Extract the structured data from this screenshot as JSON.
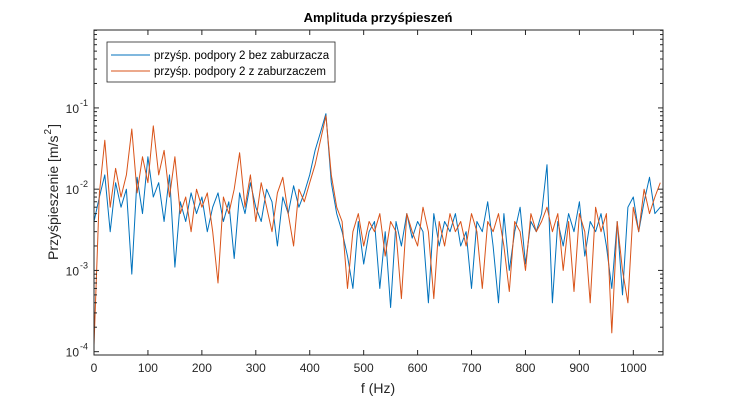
{
  "chart_data": {
    "type": "line",
    "title": "Amplituda przyśpieszeń",
    "xlabel": "f (Hz)",
    "ylabel": "Przyśpieszenie [m/s",
    "ylabel_sup": "2",
    "ylabel_end": "]",
    "xlim": [
      0,
      1055
    ],
    "ylim": [
      9.1e-05,
      0.91
    ],
    "yscale": "log",
    "x_ticks": [
      0,
      100,
      200,
      300,
      400,
      500,
      600,
      700,
      800,
      900,
      1000
    ],
    "y_ticks": [
      {
        "value": 0.0001,
        "base": "10",
        "exp": "-4"
      },
      {
        "value": 0.001,
        "base": "10",
        "exp": "-3"
      },
      {
        "value": 0.01,
        "base": "10",
        "exp": "-2"
      },
      {
        "value": 0.1,
        "base": "10",
        "exp": "-1"
      }
    ],
    "legend_position": "top-left",
    "x_step_hz": 10,
    "series": [
      {
        "name": "przyśp. podpory 2 bez zaburzacza",
        "color": "#0072BD",
        "values": [
          0.004,
          0.008,
          0.015,
          0.003,
          0.012,
          0.006,
          0.01,
          0.0009,
          0.014,
          0.005,
          0.025,
          0.008,
          0.012,
          0.004,
          0.015,
          0.0011,
          0.007,
          0.004,
          0.009,
          0.005,
          0.008,
          0.003,
          0.006,
          0.009,
          0.004,
          0.007,
          0.0014,
          0.009,
          0.005,
          0.012,
          0.006,
          0.004,
          0.01,
          0.007,
          0.002,
          0.008,
          0.005,
          0.011,
          0.006,
          0.009,
          0.015,
          0.03,
          0.05,
          0.085,
          0.012,
          0.005,
          0.003,
          0.0015,
          0.0006,
          0.004,
          0.0012,
          0.003,
          0.004,
          0.0006,
          0.003,
          0.00035,
          0.004,
          0.002,
          0.005,
          0.0025,
          0.004,
          0.003,
          0.0004,
          0.005,
          0.002,
          0.004,
          0.003,
          0.005,
          0.002,
          0.003,
          0.0006,
          0.004,
          0.003,
          0.007,
          0.002,
          0.0004,
          0.005,
          0.001,
          0.003,
          0.006,
          0.0012,
          0.004,
          0.003,
          0.005,
          0.02,
          0.0004,
          0.004,
          0.002,
          0.005,
          0.003,
          0.007,
          0.0015,
          0.004,
          0.003,
          0.005,
          0.002,
          0.0006,
          0.004,
          0.0005,
          0.006,
          0.008,
          0.003,
          0.007,
          0.014,
          0.005,
          0.006
        ]
      },
      {
        "name": "przyśp. podpory 2 z zaburzaczem",
        "color": "#D95319",
        "values": [
          0.00012,
          0.009,
          0.04,
          0.006,
          0.018,
          0.008,
          0.015,
          0.055,
          0.009,
          0.025,
          0.012,
          0.06,
          0.015,
          0.03,
          0.008,
          0.025,
          0.005,
          0.008,
          0.003,
          0.01,
          0.006,
          0.009,
          0.003,
          0.0007,
          0.008,
          0.005,
          0.01,
          0.028,
          0.006,
          0.015,
          0.004,
          0.012,
          0.006,
          0.003,
          0.009,
          0.014,
          0.005,
          0.002,
          0.01,
          0.007,
          0.012,
          0.02,
          0.04,
          0.08,
          0.015,
          0.006,
          0.004,
          0.0006,
          0.003,
          0.005,
          0.002,
          0.004,
          0.003,
          0.005,
          0.0015,
          0.004,
          0.003,
          0.00045,
          0.005,
          0.003,
          0.002,
          0.006,
          0.003,
          0.00045,
          0.004,
          0.002,
          0.005,
          0.003,
          0.004,
          0.002,
          0.005,
          0.003,
          0.0006,
          0.004,
          0.003,
          0.005,
          0.002,
          0.00055,
          0.004,
          0.003,
          0.001,
          0.005,
          0.003,
          0.004,
          0.006,
          0.003,
          0.005,
          0.001,
          0.004,
          0.00055,
          0.005,
          0.003,
          0.0004,
          0.006,
          0.003,
          0.005,
          0.00017,
          0.004,
          0.001,
          0.0004,
          0.006,
          0.003,
          0.01,
          0.005,
          0.008,
          0.012
        ]
      }
    ]
  }
}
